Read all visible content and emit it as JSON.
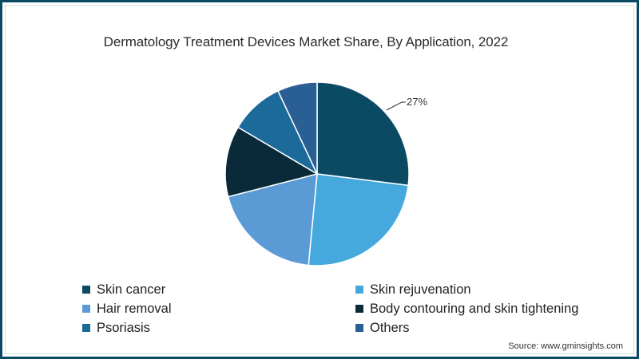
{
  "chart_data": {
    "type": "pie",
    "title": "Dermatology Treatment Devices Market Share, By Application, 2022",
    "categories": [
      "Skin cancer",
      "Skin rejuvenation",
      "Hair removal",
      "Body contouring and skin tightening",
      "Psoriasis",
      "Others"
    ],
    "values": [
      27,
      24.5,
      19.5,
      12.5,
      9.5,
      7
    ],
    "colors": [
      "#0b4a63",
      "#45a9de",
      "#5b9bd5",
      "#0a2a3a",
      "#1b6a9a",
      "#2a5f93"
    ],
    "annotations": [
      {
        "category": "Skin cancer",
        "label": "27%"
      }
    ],
    "legend_position": "bottom",
    "start_angle_deg": 0,
    "direction": "clockwise"
  },
  "title": "Dermatology Treatment Devices Market Share, By Application, 2022",
  "legend": [
    {
      "label": "Skin cancer",
      "color": "#0b4a63"
    },
    {
      "label": "Skin rejuvenation",
      "color": "#45a9de"
    },
    {
      "label": "Hair removal",
      "color": "#5b9bd5"
    },
    {
      "label": "Body contouring and skin tightening",
      "color": "#0a2a3a"
    },
    {
      "label": "Psoriasis",
      "color": "#1b6a9a"
    },
    {
      "label": "Others",
      "color": "#2a5f93"
    }
  ],
  "slice_label": "27%",
  "source": "Source: www.gminsights.com"
}
